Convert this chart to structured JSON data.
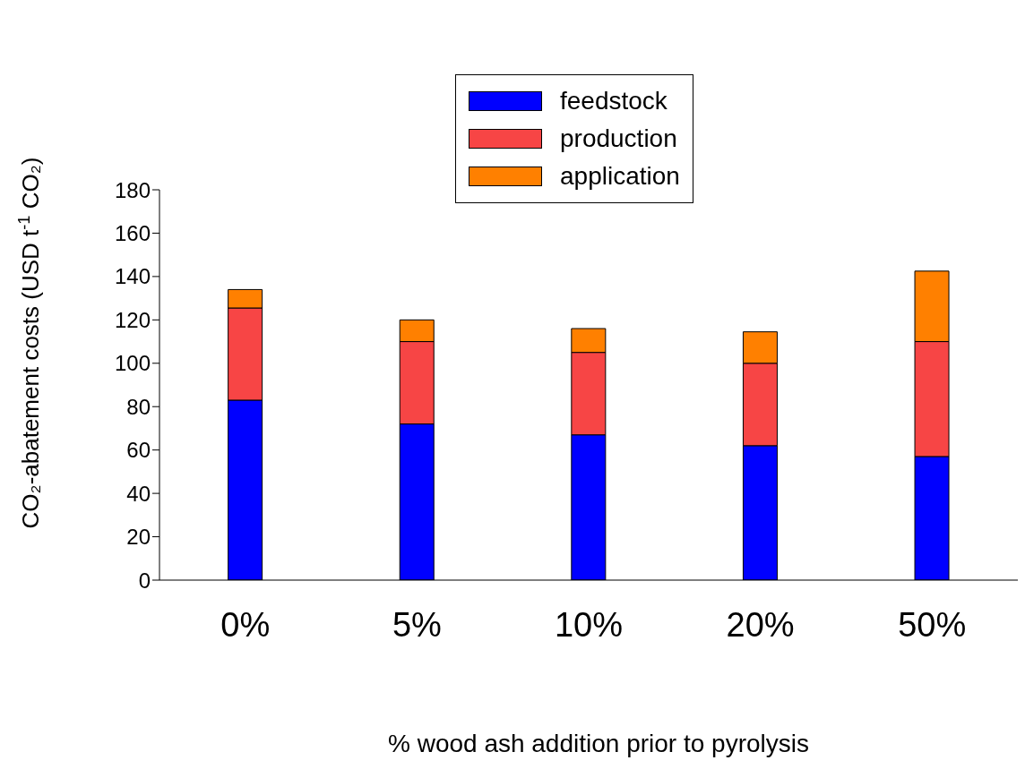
{
  "chart_data": {
    "type": "bar",
    "stacked": true,
    "xlabel": "% wood ash addition prior to pyrolysis",
    "ylabel": "CO₂-abatement costs (USD t$^{-1}$ CO₂)",
    "categories": [
      "0%",
      "5%",
      "10%",
      "20%",
      "50%"
    ],
    "series": [
      {
        "name": "feedstock",
        "color": "#0000ff",
        "values": [
          83,
          72,
          67,
          62,
          57
        ]
      },
      {
        "name": "production",
        "color": "#f74545",
        "values": [
          42.5,
          38,
          38,
          38,
          53
        ]
      },
      {
        "name": "application",
        "color": "#ff8000",
        "values": [
          8.5,
          10,
          11,
          14.5,
          32.5
        ]
      }
    ],
    "ylim": [
      0,
      180
    ],
    "yticks": [
      0,
      20,
      40,
      60,
      80,
      100,
      120,
      140,
      160,
      180
    ],
    "grid": false,
    "legend": "top"
  }
}
